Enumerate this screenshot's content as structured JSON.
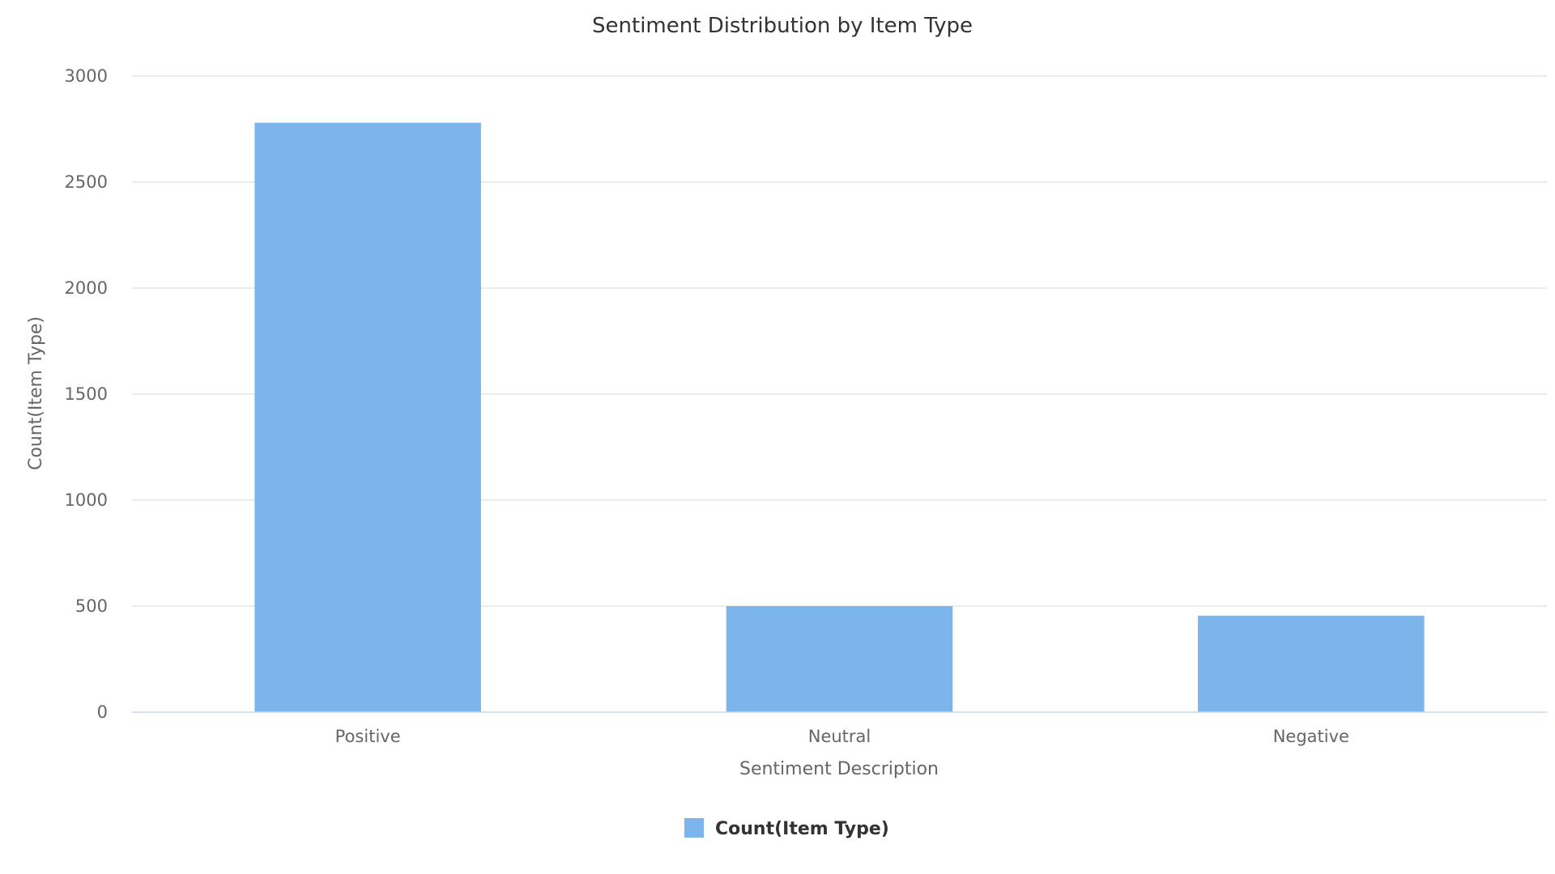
{
  "chart_data": {
    "type": "bar",
    "title": "Sentiment Distribution by Item Type",
    "xlabel": "Sentiment Description",
    "ylabel": "Count(Item Type)",
    "categories": [
      "Positive",
      "Neutral",
      "Negative"
    ],
    "series": [
      {
        "name": "Count(Item Type)",
        "values": [
          2780,
          500,
          455
        ],
        "color": "#7cb5ec"
      }
    ],
    "ylim": [
      0,
      3000
    ],
    "yticks": [
      0,
      500,
      1000,
      1500,
      2000,
      2500,
      3000
    ],
    "grid": true,
    "legend_position": "bottom-center"
  }
}
